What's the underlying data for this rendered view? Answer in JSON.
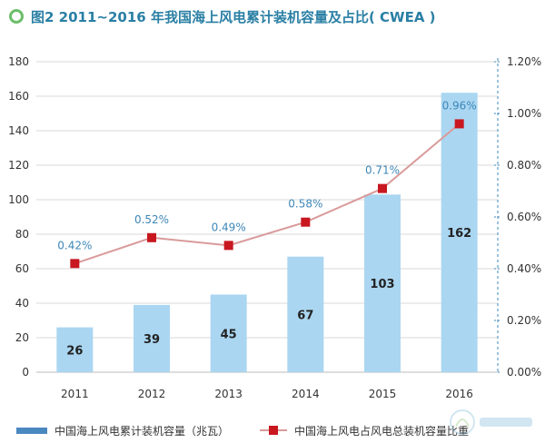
{
  "title": "图2 2011~2016 年我国海上风电累计装机容量及占比( CWEA )",
  "colors": {
    "title": "#2a7fa4",
    "icon": "#6cbf6a",
    "bar": "#aad6f1",
    "line": "#d99a9a",
    "marker": "#c8171f",
    "point_label": "#3e87b8",
    "grid": "#d9d9d9",
    "right_axis": "#3e87b8"
  },
  "legend": {
    "bars": "中国海上风电累计装机容量（兆瓦）",
    "line": "中国海上风电占风电总装机容量比重"
  },
  "chart_data": {
    "type": "bar",
    "categories": [
      "2011",
      "2012",
      "2013",
      "2014",
      "2015",
      "2016"
    ],
    "series": [
      {
        "name": "中国海上风电累计装机容量（兆瓦）",
        "type": "bar",
        "axis": "left",
        "values": [
          26,
          39,
          45,
          67,
          103,
          162
        ],
        "labels": [
          "26",
          "39",
          "45",
          "67",
          "103",
          "162"
        ]
      },
      {
        "name": "中国海上风电占风电总装机容量比重",
        "type": "line",
        "axis": "right",
        "values": [
          0.42,
          0.52,
          0.49,
          0.58,
          0.71,
          0.96
        ],
        "labels": [
          "0.42%",
          "0.52%",
          "0.49%",
          "0.58%",
          "0.71%",
          "0.96%"
        ]
      }
    ],
    "left_axis": {
      "ylim": [
        0,
        180
      ],
      "ticks": [
        "0",
        "20",
        "40",
        "60",
        "80",
        "100",
        "120",
        "140",
        "160",
        "180"
      ]
    },
    "right_axis": {
      "ylim": [
        0,
        1.2
      ],
      "ticks": [
        "0.00%",
        "0.20%",
        "0.40%",
        "0.60%",
        "0.80%",
        "1.00%",
        "1.20%"
      ]
    },
    "grid": true,
    "legend_position": "bottom"
  }
}
